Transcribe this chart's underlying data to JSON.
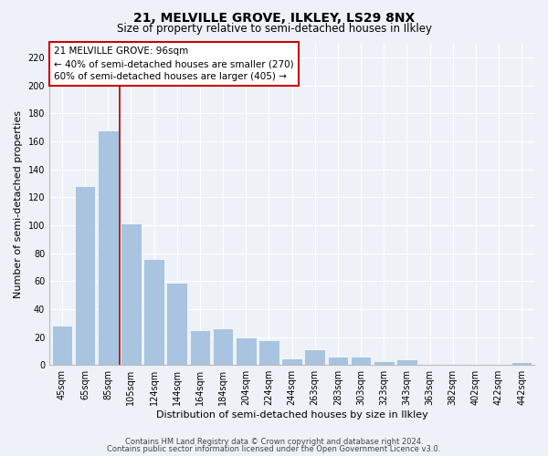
{
  "title": "21, MELVILLE GROVE, ILKLEY, LS29 8NX",
  "subtitle": "Size of property relative to semi-detached houses in Ilkley",
  "xlabel": "Distribution of semi-detached houses by size in Ilkley",
  "ylabel": "Number of semi-detached properties",
  "bar_labels": [
    "45sqm",
    "65sqm",
    "85sqm",
    "105sqm",
    "124sqm",
    "144sqm",
    "164sqm",
    "184sqm",
    "204sqm",
    "224sqm",
    "244sqm",
    "263sqm",
    "283sqm",
    "303sqm",
    "323sqm",
    "343sqm",
    "363sqm",
    "382sqm",
    "402sqm",
    "422sqm",
    "442sqm"
  ],
  "bar_values": [
    28,
    128,
    168,
    101,
    76,
    59,
    25,
    26,
    20,
    18,
    5,
    11,
    6,
    6,
    3,
    4,
    0,
    1,
    0,
    0,
    2
  ],
  "bar_color": "#a8c4e0",
  "highlight_line_color": "#aa0000",
  "annotation_title": "21 MELVILLE GROVE: 96sqm",
  "annotation_line1": "← 40% of semi-detached houses are smaller (270)",
  "annotation_line2": "60% of semi-detached houses are larger (405) →",
  "annotation_box_facecolor": "#ffffff",
  "annotation_box_edgecolor": "#cc0000",
  "ylim": [
    0,
    230
  ],
  "yticks": [
    0,
    20,
    40,
    60,
    80,
    100,
    120,
    140,
    160,
    180,
    200,
    220
  ],
  "footer1": "Contains HM Land Registry data © Crown copyright and database right 2024.",
  "footer2": "Contains public sector information licensed under the Open Government Licence v3.0.",
  "bg_color": "#eef2f8",
  "grid_color": "#ffffff",
  "title_fontsize": 10,
  "subtitle_fontsize": 8.5,
  "axis_label_fontsize": 8,
  "tick_fontsize": 7,
  "annotation_fontsize": 7.5,
  "footer_fontsize": 6
}
